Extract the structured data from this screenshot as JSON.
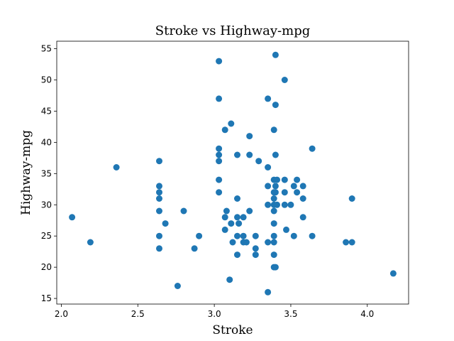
{
  "chart_data": {
    "type": "scatter",
    "title": "Stroke vs Highway-mpg",
    "xlabel": "Stroke",
    "ylabel": "Highway-mpg",
    "xlim": [
      1.97,
      4.27
    ],
    "ylim": [
      14.1,
      56.2
    ],
    "xticks": [
      2.0,
      2.5,
      3.0,
      3.5,
      4.0
    ],
    "xtick_labels": [
      "2.0",
      "2.5",
      "3.0",
      "3.5",
      "4.0"
    ],
    "yticks": [
      15,
      20,
      25,
      30,
      35,
      40,
      45,
      50,
      55
    ],
    "ytick_labels": [
      "15",
      "20",
      "25",
      "30",
      "35",
      "40",
      "45",
      "50",
      "55"
    ],
    "grid": false,
    "marker_color": "#1f77b4",
    "points": [
      {
        "x": 2.07,
        "y": 28
      },
      {
        "x": 2.19,
        "y": 24
      },
      {
        "x": 2.36,
        "y": 36
      },
      {
        "x": 2.64,
        "y": 37
      },
      {
        "x": 2.64,
        "y": 33
      },
      {
        "x": 2.64,
        "y": 32
      },
      {
        "x": 2.64,
        "y": 31
      },
      {
        "x": 2.64,
        "y": 29
      },
      {
        "x": 2.64,
        "y": 25
      },
      {
        "x": 2.64,
        "y": 23
      },
      {
        "x": 2.68,
        "y": 27
      },
      {
        "x": 2.76,
        "y": 17
      },
      {
        "x": 2.8,
        "y": 29
      },
      {
        "x": 2.87,
        "y": 23
      },
      {
        "x": 2.9,
        "y": 25
      },
      {
        "x": 3.03,
        "y": 53
      },
      {
        "x": 3.03,
        "y": 47
      },
      {
        "x": 3.03,
        "y": 39
      },
      {
        "x": 3.03,
        "y": 38
      },
      {
        "x": 3.03,
        "y": 37
      },
      {
        "x": 3.03,
        "y": 34
      },
      {
        "x": 3.03,
        "y": 32
      },
      {
        "x": 3.07,
        "y": 42
      },
      {
        "x": 3.07,
        "y": 28
      },
      {
        "x": 3.07,
        "y": 26
      },
      {
        "x": 3.08,
        "y": 29
      },
      {
        "x": 3.1,
        "y": 18
      },
      {
        "x": 3.11,
        "y": 43
      },
      {
        "x": 3.11,
        "y": 27
      },
      {
        "x": 3.12,
        "y": 24
      },
      {
        "x": 3.15,
        "y": 38
      },
      {
        "x": 3.15,
        "y": 31
      },
      {
        "x": 3.15,
        "y": 28
      },
      {
        "x": 3.15,
        "y": 25
      },
      {
        "x": 3.15,
        "y": 22
      },
      {
        "x": 3.16,
        "y": 27
      },
      {
        "x": 3.19,
        "y": 28
      },
      {
        "x": 3.19,
        "y": 25
      },
      {
        "x": 3.19,
        "y": 24
      },
      {
        "x": 3.21,
        "y": 24
      },
      {
        "x": 3.23,
        "y": 41
      },
      {
        "x": 3.23,
        "y": 38
      },
      {
        "x": 3.23,
        "y": 29
      },
      {
        "x": 3.27,
        "y": 25
      },
      {
        "x": 3.27,
        "y": 23
      },
      {
        "x": 3.27,
        "y": 22
      },
      {
        "x": 3.29,
        "y": 37
      },
      {
        "x": 3.35,
        "y": 47
      },
      {
        "x": 3.35,
        "y": 36
      },
      {
        "x": 3.35,
        "y": 33
      },
      {
        "x": 3.35,
        "y": 30
      },
      {
        "x": 3.35,
        "y": 24
      },
      {
        "x": 3.35,
        "y": 16
      },
      {
        "x": 3.39,
        "y": 42
      },
      {
        "x": 3.39,
        "y": 34
      },
      {
        "x": 3.39,
        "y": 32
      },
      {
        "x": 3.39,
        "y": 31
      },
      {
        "x": 3.39,
        "y": 30
      },
      {
        "x": 3.39,
        "y": 29
      },
      {
        "x": 3.39,
        "y": 27
      },
      {
        "x": 3.39,
        "y": 25
      },
      {
        "x": 3.39,
        "y": 24
      },
      {
        "x": 3.39,
        "y": 22
      },
      {
        "x": 3.39,
        "y": 20
      },
      {
        "x": 3.4,
        "y": 54
      },
      {
        "x": 3.4,
        "y": 46
      },
      {
        "x": 3.4,
        "y": 38
      },
      {
        "x": 3.4,
        "y": 33
      },
      {
        "x": 3.4,
        "y": 32
      },
      {
        "x": 3.4,
        "y": 20
      },
      {
        "x": 3.41,
        "y": 34
      },
      {
        "x": 3.41,
        "y": 30
      },
      {
        "x": 3.46,
        "y": 50
      },
      {
        "x": 3.46,
        "y": 34
      },
      {
        "x": 3.46,
        "y": 32
      },
      {
        "x": 3.46,
        "y": 30
      },
      {
        "x": 3.47,
        "y": 26
      },
      {
        "x": 3.5,
        "y": 30
      },
      {
        "x": 3.52,
        "y": 33
      },
      {
        "x": 3.52,
        "y": 25
      },
      {
        "x": 3.54,
        "y": 34
      },
      {
        "x": 3.54,
        "y": 32
      },
      {
        "x": 3.58,
        "y": 33
      },
      {
        "x": 3.58,
        "y": 31
      },
      {
        "x": 3.58,
        "y": 28
      },
      {
        "x": 3.64,
        "y": 39
      },
      {
        "x": 3.64,
        "y": 25
      },
      {
        "x": 3.86,
        "y": 24
      },
      {
        "x": 3.9,
        "y": 31
      },
      {
        "x": 3.9,
        "y": 24
      },
      {
        "x": 4.17,
        "y": 19
      }
    ]
  }
}
